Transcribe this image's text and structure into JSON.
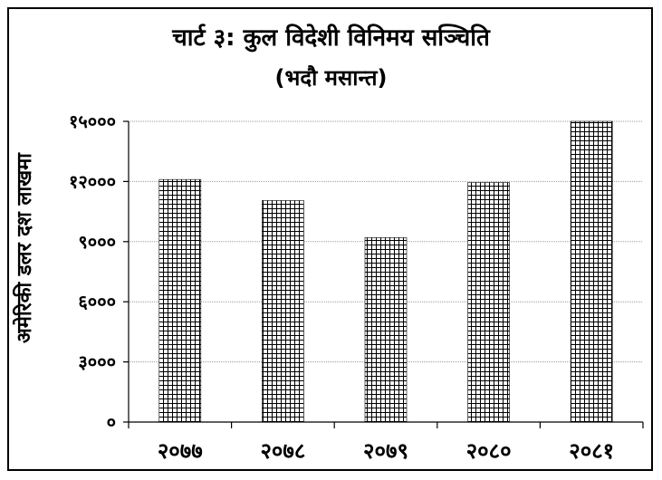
{
  "chart_data": {
    "type": "bar",
    "title": "चार्ट ३: कुल विदेशी विनिमय सञ्चिति",
    "subtitle": "(भदौ मसान्त)",
    "ylabel": "अमेरिकी डलर दश लाखमा",
    "xlabel": "",
    "categories": [
      "२०७७",
      "२०७८",
      "२०७९",
      "२०८०",
      "२०८१"
    ],
    "values": [
      12100,
      11050,
      9200,
      11950,
      15000
    ],
    "ylim": [
      0,
      15000
    ],
    "yticks": [
      0,
      3000,
      6000,
      9000,
      12000,
      15000
    ],
    "ytick_labels": [
      "०",
      "३०००",
      "६०००",
      "९०००",
      "१२०००",
      "१५०००"
    ],
    "grid": true,
    "legend": "none",
    "colors": {
      "bar_fill": "#ffffff",
      "bar_pattern": "#000000",
      "grid": "#9a9a9a",
      "axis": "#000000"
    }
  }
}
